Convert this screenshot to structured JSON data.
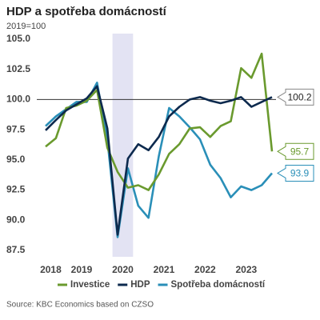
{
  "chart_data": {
    "type": "line",
    "title": "HDP a spotřeba domácností",
    "subtitle": "2019=100",
    "source": "Source: KBC Economics based on CZSO",
    "categories": [
      "2018",
      null,
      null,
      "2019",
      null,
      null,
      null,
      "2020",
      null,
      null,
      null,
      "2021",
      null,
      null,
      null,
      "2022",
      null,
      null,
      null,
      "2023",
      null,
      null,
      null
    ],
    "ylim": [
      87.5,
      105
    ],
    "yticks": [
      {
        "value": 87.5,
        "label": "87.5"
      },
      {
        "value": 90,
        "label": "90.0"
      },
      92.5,
      {
        "value": 95,
        "label": "95.0"
      },
      97.5,
      {
        "value": 100,
        "label": "100.0"
      },
      102.5,
      {
        "value": 105,
        "label": "105.0"
      }
    ],
    "reference_line": 100,
    "series": [
      {
        "name": "Investice",
        "color": "#6a9a2e",
        "values": [
          96.1,
          96.8,
          99.3,
          99.5,
          99.9,
          100.8,
          96.0,
          94.0,
          92.7,
          92.9,
          92.5,
          93.8,
          95.5,
          96.3,
          97.6,
          97.7,
          96.9,
          97.8,
          98.2,
          102.6,
          101.8,
          103.8,
          95.7
        ],
        "end_label": "95.7"
      },
      {
        "name": "HDP",
        "color": "#0d2a4e",
        "values": [
          97.45,
          98.3,
          99.1,
          99.6,
          100.1,
          101.1,
          97.6,
          88.8,
          95.1,
          96.3,
          95.8,
          96.9,
          98.6,
          99.4,
          100.0,
          100.2,
          99.9,
          99.7,
          99.9,
          100.2,
          99.4,
          99.8,
          100.2
        ],
        "end_label": "100.2"
      },
      {
        "name": "Spotřeba domácností",
        "color": "#2a8fb8",
        "values": [
          97.8,
          98.6,
          99.2,
          99.8,
          99.8,
          101.4,
          96.7,
          88.6,
          94.3,
          91.2,
          90.2,
          95.3,
          99.3,
          98.6,
          97.7,
          96.7,
          94.6,
          93.5,
          91.9,
          92.8,
          92.5,
          92.9,
          93.9
        ],
        "end_label": "93.9"
      }
    ]
  }
}
